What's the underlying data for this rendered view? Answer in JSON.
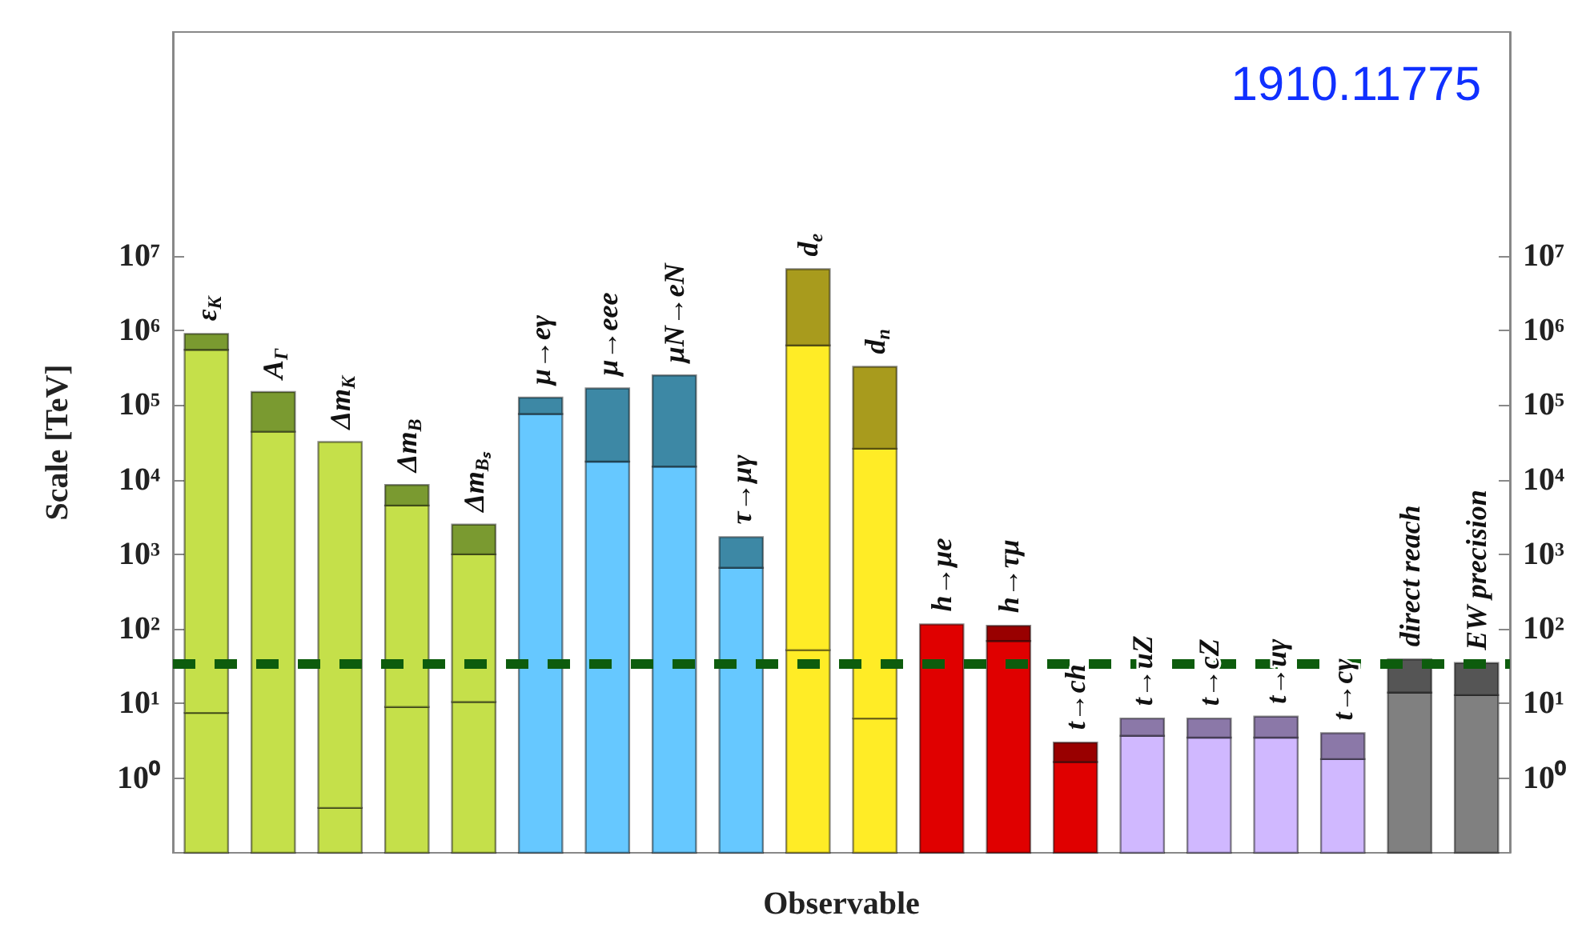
{
  "chart_data": {
    "type": "bar",
    "stacked": true,
    "log": "y",
    "xlabel": "Observable",
    "ylabel": "Scale [TeV]",
    "annotations": [
      "1910.11775"
    ],
    "categories": [
      "ε$_{K}$",
      "A$_{Γ}$",
      "Δm$_{K}$",
      "Δm$_{B}$",
      "Δm$_{Bₛ}$",
      "μ→eγ",
      "μ→eee",
      "μN→eN",
      "τ→μγ",
      "d$_{e}$",
      "d$_{n}$",
      "h→μe",
      "h→τμ",
      "t→ch",
      "t→uZ",
      "t→cZ",
      "t→uγ",
      "t→cγ",
      "direct reach",
      "EW precision"
    ],
    "series": [
      {
        "colors": [
          "#c5e04a",
          "#c5e04a",
          "#c5e04a",
          "#c5e04a",
          "#c5e04a",
          "#66c8ff",
          "#66c8ff",
          "#66c8ff",
          "#66c8ff",
          "#ffec26",
          "#ffec26",
          "#e00000",
          "#e00000",
          "#e00000",
          "#d0b8ff",
          "#d0b8ff",
          "#d0b8ff",
          "#d0b8ff",
          "#808080",
          "#808080"
        ],
        "values": [
          7.5,
          null,
          0.4,
          9,
          10.5,
          null,
          null,
          null,
          null,
          52,
          6.3,
          null,
          null,
          null,
          null,
          null,
          null,
          null,
          null,
          null
        ]
      },
      {
        "colors": [
          "#c5e04a",
          "#c5e04a",
          "#c5e04a",
          "#c5e04a",
          "#c5e04a",
          "#66c8ff",
          "#66c8ff",
          "#66c8ff",
          "#66c8ff",
          "#ffec26",
          "#ffec26",
          "#e00000",
          "#e00000",
          "#e00000",
          "#d0b8ff",
          "#d0b8ff",
          "#d0b8ff",
          "#d0b8ff",
          "#808080",
          "#808080"
        ],
        "values": [
          550000,
          44000,
          32000,
          4500,
          990,
          76000,
          17500,
          15000,
          660,
          630000,
          26000,
          115,
          69,
          1.65,
          3.7,
          3.5,
          3.5,
          1.8,
          14,
          13
        ]
      },
      {
        "colors": [
          "#7a9a30",
          "#7a9a30",
          "#7a9a30",
          "#7a9a30",
          "#7a9a30",
          "#3d88a5",
          "#3d88a5",
          "#3d88a5",
          "#3d88a5",
          "#a89b1d",
          "#a89b1d",
          "#990000",
          "#990000",
          "#990000",
          "#8b78a8",
          "#8b78a8",
          "#8b78a8",
          "#8b78a8",
          "#555555",
          "#555555"
        ],
        "values": [
          350000,
          106000,
          null,
          4000,
          1500,
          50000,
          150000,
          235000,
          1040,
          6000000,
          300000,
          null,
          41,
          1.35,
          2.6,
          2.8,
          3.2,
          2.2,
          25,
          22
        ]
      }
    ],
    "ylim": [
      0.1,
      10000000000
    ],
    "yticks": [
      {
        "value": 1,
        "label": "10⁰"
      },
      {
        "value": 10,
        "label": "10¹"
      },
      {
        "value": 100,
        "label": "10²"
      },
      {
        "value": 1000,
        "label": "10³"
      },
      {
        "value": 10000,
        "label": "10⁴"
      },
      {
        "value": 100000,
        "label": "10⁵"
      },
      {
        "value": 1000000,
        "label": "10⁶"
      },
      {
        "value": 10000000,
        "label": "10⁷"
      }
    ],
    "ref_lines": [
      {
        "axis": "y",
        "value": 34,
        "color": "#0d5c0d",
        "line_style": "dashed"
      }
    ],
    "grid": false
  }
}
